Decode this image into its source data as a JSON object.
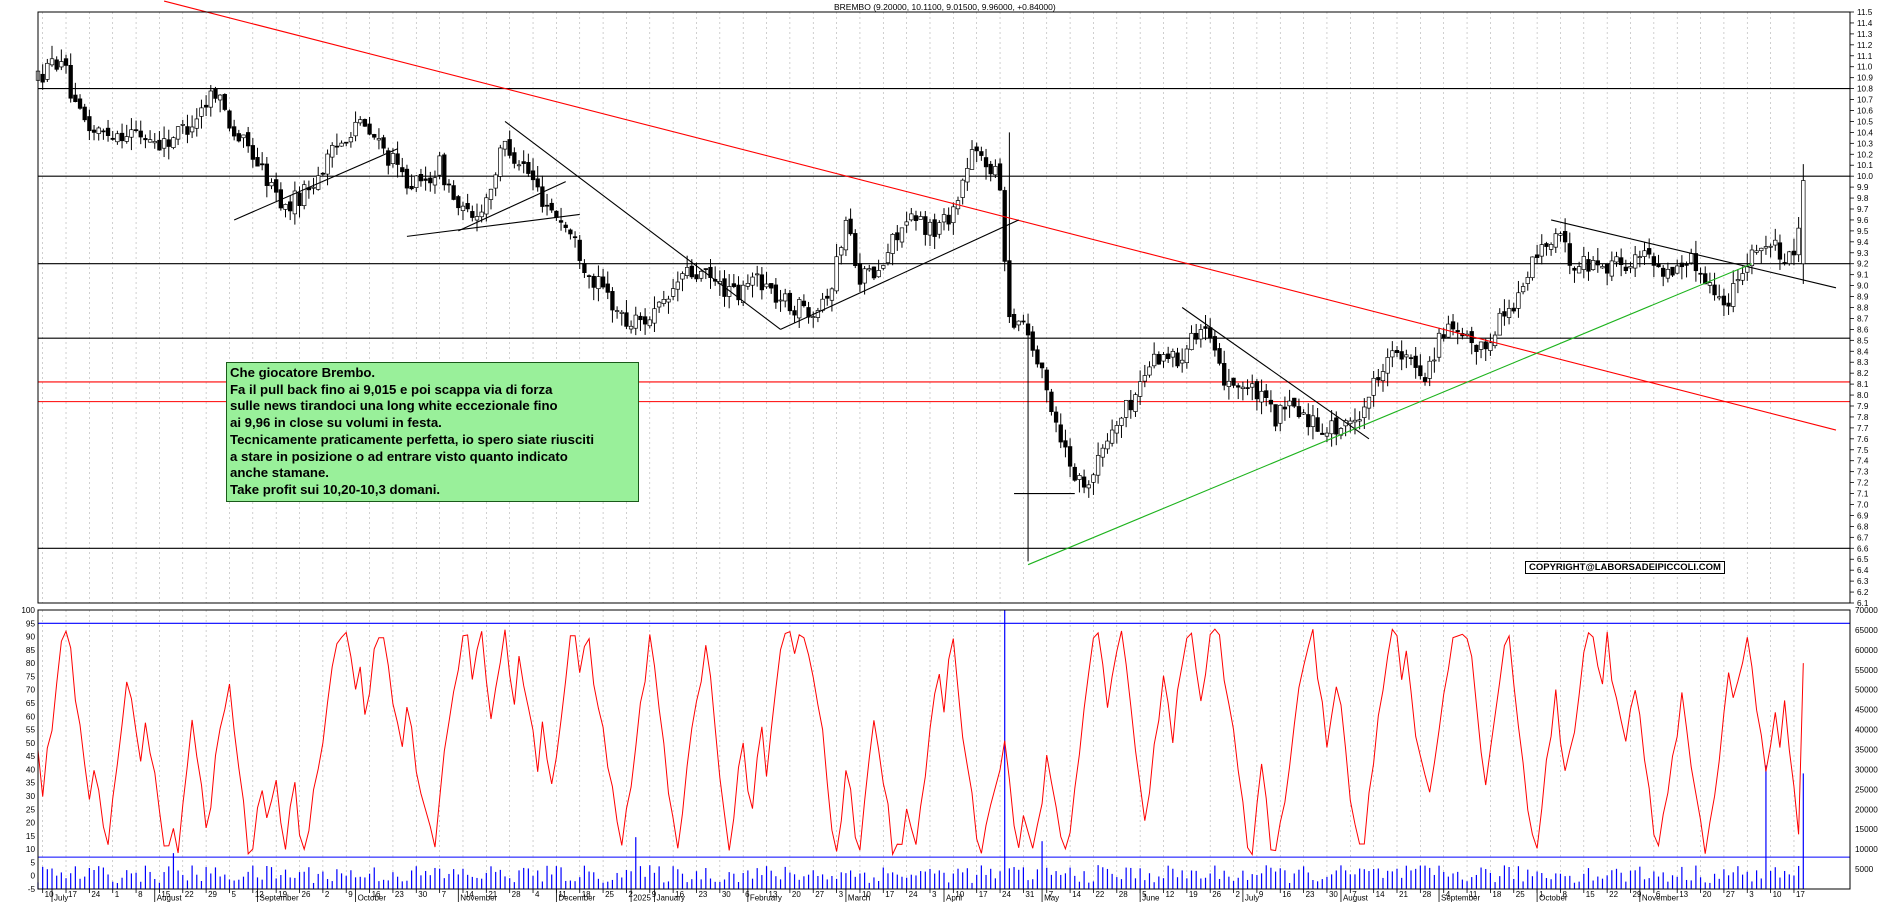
{
  "chart_data": [
    {
      "type": "candlestick",
      "title": "BREMBO (9.20000, 10.1100, 9.01500, 9.96000, +0.84000)",
      "ylim": [
        6.1,
        11.5
      ],
      "y_ticks": [
        "11.5",
        "11.4",
        "11.3",
        "11.2",
        "11.1",
        "11.0",
        "10.9",
        "10.8",
        "10.7",
        "10.6",
        "10.5",
        "10.4",
        "10.3",
        "10.2",
        "10.1",
        "10.0",
        "9.9",
        "9.8",
        "9.7",
        "9.6",
        "9.5",
        "9.4",
        "9.3",
        "9.2",
        "9.1",
        "9.0",
        "8.9",
        "8.8",
        "8.7",
        "8.6",
        "8.5",
        "8.4",
        "8.3",
        "8.2",
        "8.1",
        "8.0",
        "7.9",
        "7.8",
        "7.7",
        "7.6",
        "7.5",
        "7.4",
        "7.3",
        "7.2",
        "7.1",
        "7.0",
        "6.9",
        "6.8",
        "6.7",
        "6.6",
        "6.5",
        "6.4",
        "6.3",
        "6.2",
        "6.1"
      ],
      "horizontal_levels": [
        {
          "y": 11.5,
          "color": "#000000"
        },
        {
          "y": 10.8,
          "color": "#000000"
        },
        {
          "y": 10.0,
          "color": "#000000"
        },
        {
          "y": 9.2,
          "color": "#000000"
        },
        {
          "y": 8.52,
          "color": "#000000"
        },
        {
          "y": 8.12,
          "color": "#ff0000"
        },
        {
          "y": 7.94,
          "color": "#ff0000"
        },
        {
          "y": 6.6,
          "color": "#000000"
        }
      ],
      "price_path": [
        [
          0,
          10.9
        ],
        [
          5,
          11.1
        ],
        [
          8,
          10.6
        ],
        [
          12,
          10.4
        ],
        [
          20,
          10.4
        ],
        [
          27,
          10.3
        ],
        [
          33,
          10.5
        ],
        [
          38,
          10.8
        ],
        [
          42,
          10.4
        ],
        [
          46,
          10.2
        ],
        [
          50,
          9.9
        ],
        [
          53,
          9.7
        ],
        [
          58,
          9.9
        ],
        [
          63,
          10.2
        ],
        [
          68,
          10.5
        ],
        [
          73,
          10.3
        ],
        [
          78,
          10.0
        ],
        [
          82,
          9.9
        ],
        [
          86,
          10.1
        ],
        [
          90,
          9.7
        ],
        [
          93,
          9.6
        ],
        [
          96,
          9.8
        ],
        [
          100,
          10.3
        ],
        [
          104,
          10.1
        ],
        [
          108,
          9.8
        ],
        [
          112,
          9.6
        ],
        [
          115,
          9.4
        ],
        [
          118,
          9.1
        ],
        [
          122,
          8.9
        ],
        [
          126,
          8.65
        ],
        [
          130,
          8.7
        ],
        [
          134,
          8.8
        ],
        [
          138,
          9.1
        ],
        [
          142,
          9.1
        ],
        [
          146,
          9.0
        ],
        [
          150,
          8.9
        ],
        [
          154,
          9.1
        ],
        [
          158,
          8.9
        ],
        [
          162,
          8.8
        ],
        [
          166,
          8.8
        ],
        [
          170,
          9.0
        ],
        [
          173,
          9.6
        ],
        [
          176,
          9.1
        ],
        [
          180,
          9.1
        ],
        [
          184,
          9.5
        ],
        [
          188,
          9.6
        ],
        [
          192,
          9.5
        ],
        [
          196,
          9.7
        ],
        [
          200,
          10.2
        ],
        [
          204,
          10.1
        ],
        [
          206,
          9.9
        ],
        [
          208,
          8.7
        ],
        [
          211,
          8.7
        ],
        [
          214,
          8.3
        ],
        [
          217,
          7.9
        ],
        [
          220,
          7.5
        ],
        [
          223,
          7.2
        ],
        [
          226,
          7.3
        ],
        [
          229,
          7.6
        ],
        [
          232,
          7.8
        ],
        [
          235,
          8.0
        ],
        [
          238,
          8.3
        ],
        [
          241,
          8.4
        ],
        [
          244,
          8.3
        ],
        [
          247,
          8.6
        ],
        [
          250,
          8.6
        ],
        [
          253,
          8.2
        ],
        [
          257,
          8.1
        ],
        [
          261,
          8.0
        ],
        [
          265,
          7.8
        ],
        [
          269,
          7.9
        ],
        [
          273,
          7.75
        ],
        [
          277,
          7.7
        ],
        [
          281,
          7.7
        ],
        [
          285,
          8.0
        ],
        [
          289,
          8.4
        ],
        [
          293,
          8.3
        ],
        [
          297,
          8.2
        ],
        [
          301,
          8.6
        ],
        [
          305,
          8.5
        ],
        [
          309,
          8.4
        ],
        [
          313,
          8.7
        ],
        [
          317,
          8.9
        ],
        [
          321,
          9.3
        ],
        [
          325,
          9.45
        ],
        [
          329,
          9.2
        ],
        [
          333,
          9.2
        ],
        [
          337,
          9.2
        ],
        [
          341,
          9.2
        ],
        [
          345,
          9.3
        ],
        [
          349,
          9.1
        ],
        [
          353,
          9.25
        ],
        [
          357,
          9.1
        ],
        [
          361,
          8.8
        ],
        [
          365,
          9.2
        ],
        [
          369,
          9.4
        ],
        [
          373,
          9.3
        ],
        [
          376,
          9.2
        ],
        [
          378,
          9.96
        ]
      ],
      "trendlines": [
        {
          "color": "#ff0000",
          "points": [
            [
              27,
              11.6
            ],
            [
              385,
              7.68
            ]
          ]
        },
        {
          "color": "#000000",
          "points": [
            [
              42,
              9.6
            ],
            [
              77,
              10.25
            ]
          ]
        },
        {
          "color": "#000000",
          "points": [
            [
              79,
              9.45
            ],
            [
              116,
              9.65
            ]
          ]
        },
        {
          "color": "#000000",
          "points": [
            [
              90,
              9.5
            ],
            [
              113,
              9.95
            ]
          ]
        },
        {
          "color": "#000000",
          "points": [
            [
              100,
              10.5
            ],
            [
              159,
              8.6
            ]
          ]
        },
        {
          "color": "#000000",
          "points": [
            [
              159,
              8.6
            ],
            [
              210,
              9.6
            ]
          ]
        },
        {
          "color": "#000000",
          "points": [
            [
              209,
              7.1
            ],
            [
              222,
              7.1
            ]
          ]
        },
        {
          "color": "#000000",
          "points": [
            [
              245,
              8.8
            ],
            [
              285,
              7.6
            ]
          ]
        },
        {
          "color": "#000000",
          "points": [
            [
              324,
              9.6
            ],
            [
              385,
              8.98
            ]
          ]
        },
        {
          "color": "#1db31d",
          "points": [
            [
              212,
              6.45
            ],
            [
              367,
              9.2
            ]
          ]
        }
      ],
      "note_lines": [
        "Che giocatore Brembo.",
        "Fa il pull back fino ai 9,015 e poi scappa via di forza",
        "sulle news tirandoci una long white eccezionale fino",
        "ai 9,96 in close su volumi in festa.",
        "Tecnicamente praticamente perfetta, io spero siate riusciti",
        "a stare in posizione o ad entrare visto quanto indicato",
        "anche stamane.",
        "Take profit sui 10,20-10,3 domani."
      ],
      "copyright": "COPYRIGHT@LABORSADEIPICCOLI.COM"
    },
    {
      "type": "line+bar",
      "ylim_left": [
        -5,
        100
      ],
      "ylim_right": [
        0,
        70000
      ],
      "y_ticks_left": [
        "100",
        "95",
        "90",
        "85",
        "80",
        "75",
        "70",
        "65",
        "60",
        "55",
        "50",
        "45",
        "40",
        "35",
        "30",
        "25",
        "20",
        "15",
        "10",
        "5",
        "0",
        "-5"
      ],
      "y_ticks_right": [
        "70000",
        "65000",
        "60000",
        "55000",
        "50000",
        "45000",
        "40000",
        "35000",
        "30000",
        "25000",
        "20000",
        "15000",
        "10000",
        "5000"
      ],
      "bands": [
        {
          "y": 95,
          "color": "#0000ff"
        },
        {
          "y": 7,
          "color": "#0000ff"
        }
      ],
      "oscillator_color": "#ff0000",
      "volume_color": "#0000ff",
      "volume_spikes": [
        [
          207,
          70000
        ],
        [
          29,
          9000
        ],
        [
          128,
          13000
        ],
        [
          215,
          12000
        ],
        [
          370,
          31000
        ],
        [
          378,
          29000
        ]
      ]
    }
  ],
  "x_axis": {
    "day_ticks": [
      "10",
      "17",
      "24",
      "1",
      "8",
      "15",
      "22",
      "29",
      "5",
      "12",
      "19",
      "26",
      "2",
      "9",
      "16",
      "23",
      "30",
      "7",
      "14",
      "21",
      "28",
      "4",
      "11",
      "18",
      "25",
      "2",
      "9",
      "16",
      "23",
      "30",
      "6",
      "13",
      "20",
      "27",
      "3",
      "10",
      "17",
      "24",
      "3",
      "10",
      "17",
      "24",
      "31",
      "7",
      "14",
      "22",
      "28",
      "5",
      "12",
      "19",
      "26",
      "2",
      "9",
      "16",
      "23",
      "30",
      "7",
      "14",
      "21",
      "28",
      "4",
      "11",
      "18",
      "25",
      "1",
      "8",
      "15",
      "22",
      "29",
      "6",
      "13",
      "20",
      "27",
      "3",
      "10",
      "17"
    ],
    "months": [
      {
        "label": "July",
        "day": 3
      },
      {
        "label": "August",
        "day": 25
      },
      {
        "label": "September",
        "day": 47
      },
      {
        "label": "October",
        "day": 68
      },
      {
        "label": "November",
        "day": 90
      },
      {
        "label": "December",
        "day": 111
      },
      {
        "label": "2025",
        "day": 127
      },
      {
        "label": "January",
        "day": 132
      },
      {
        "label": "February",
        "day": 152
      },
      {
        "label": "March",
        "day": 173
      },
      {
        "label": "April",
        "day": 194
      },
      {
        "label": "May",
        "day": 215
      },
      {
        "label": "June",
        "day": 236
      },
      {
        "label": "July",
        "day": 258
      },
      {
        "label": "August",
        "day": 279
      },
      {
        "label": "September",
        "day": 300
      },
      {
        "label": "October",
        "day": 321
      },
      {
        "label": "November",
        "day": 343
      }
    ]
  }
}
